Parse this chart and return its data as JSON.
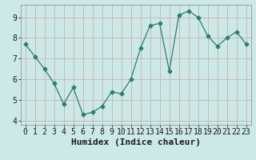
{
  "x": [
    0,
    1,
    2,
    3,
    4,
    5,
    6,
    7,
    8,
    9,
    10,
    11,
    12,
    13,
    14,
    15,
    16,
    17,
    18,
    19,
    20,
    21,
    22,
    23
  ],
  "y": [
    7.7,
    7.1,
    6.5,
    5.8,
    4.8,
    5.6,
    4.3,
    4.4,
    4.7,
    5.4,
    5.3,
    6.0,
    7.5,
    8.6,
    8.7,
    6.4,
    9.1,
    9.3,
    9.0,
    8.1,
    7.6,
    8.0,
    8.3,
    7.7
  ],
  "xlabel": "Humidex (Indice chaleur)",
  "xlim": [
    -0.5,
    23.5
  ],
  "ylim": [
    3.8,
    9.6
  ],
  "yticks": [
    4,
    5,
    6,
    7,
    8,
    9
  ],
  "xticks": [
    0,
    1,
    2,
    3,
    4,
    5,
    6,
    7,
    8,
    9,
    10,
    11,
    12,
    13,
    14,
    15,
    16,
    17,
    18,
    19,
    20,
    21,
    22,
    23
  ],
  "line_color": "#2e7d6e",
  "marker": "D",
  "marker_size": 2.5,
  "bg_color": "#cce9e7",
  "grid_color": "#c8b8b8",
  "axis_bg": "#cce9e7",
  "xlabel_fontsize": 8,
  "tick_fontsize": 7
}
